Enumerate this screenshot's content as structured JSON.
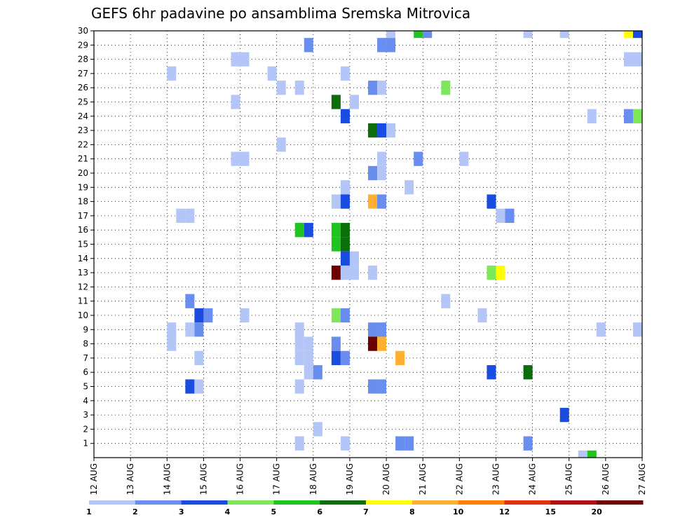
{
  "chart_data": {
    "type": "heatmap",
    "title": "GEFS 6hr padavine po ansamblima Sremska Mitrovica",
    "xlabel": "",
    "ylabel": "",
    "x_ticks": [
      "12 AUG",
      "13 AUG",
      "14 AUG",
      "15 AUG",
      "16 AUG",
      "17 AUG",
      "18 AUG",
      "19 AUG",
      "20 AUG",
      "21 AUG",
      "22 AUG",
      "23 AUG",
      "24 AUG",
      "25 AUG",
      "26 AUG",
      "27 AUG"
    ],
    "y_ticks": [
      1,
      2,
      3,
      4,
      5,
      6,
      7,
      8,
      9,
      10,
      11,
      12,
      13,
      14,
      15,
      16,
      17,
      18,
      19,
      20,
      21,
      22,
      23,
      24,
      25,
      26,
      27,
      28,
      29,
      30
    ],
    "xlim_days": [
      12,
      27
    ],
    "ylim": [
      0,
      30
    ],
    "grid": true,
    "colorbar": {
      "levels": [
        1,
        2,
        3,
        4,
        5,
        6,
        7,
        8,
        10,
        12,
        15,
        20
      ],
      "labels": [
        "1",
        "2",
        "3",
        "4",
        "5",
        "6",
        "7",
        "8",
        "10",
        "12",
        "15",
        "20"
      ],
      "colors": [
        "#b3c6f7",
        "#6a8ef0",
        "#1a4ce0",
        "#7ce85a",
        "#1fc41f",
        "#0a6e0a",
        "#ffff00",
        "#ffb030",
        "#ff8000",
        "#e03010",
        "#b01010",
        "#6e0000"
      ]
    },
    "cells": [
      {
        "day": 14.0,
        "member": 27,
        "c": 0
      },
      {
        "day": 14.0,
        "member": 9,
        "c": 0
      },
      {
        "day": 14.0,
        "member": 8,
        "c": 0
      },
      {
        "day": 14.25,
        "member": 17,
        "c": 0
      },
      {
        "day": 14.5,
        "member": 17,
        "c": 0
      },
      {
        "day": 14.5,
        "member": 11,
        "c": 1
      },
      {
        "day": 14.5,
        "member": 9,
        "c": 0
      },
      {
        "day": 14.5,
        "member": 5,
        "c": 2
      },
      {
        "day": 14.75,
        "member": 10,
        "c": 2
      },
      {
        "day": 14.75,
        "member": 9,
        "c": 1
      },
      {
        "day": 14.75,
        "member": 7,
        "c": 0
      },
      {
        "day": 14.75,
        "member": 5,
        "c": 0
      },
      {
        "day": 15.0,
        "member": 10,
        "c": 1
      },
      {
        "day": 15.75,
        "member": 28,
        "c": 0
      },
      {
        "day": 15.75,
        "member": 25,
        "c": 0
      },
      {
        "day": 15.75,
        "member": 21,
        "c": 0
      },
      {
        "day": 16.0,
        "member": 28,
        "c": 0
      },
      {
        "day": 16.0,
        "member": 21,
        "c": 0
      },
      {
        "day": 16.0,
        "member": 10,
        "c": 0
      },
      {
        "day": 16.75,
        "member": 27,
        "c": 0
      },
      {
        "day": 17.0,
        "member": 26,
        "c": 0
      },
      {
        "day": 17.0,
        "member": 22,
        "c": 0
      },
      {
        "day": 17.5,
        "member": 26,
        "c": 0
      },
      {
        "day": 17.5,
        "member": 16,
        "c": 4
      },
      {
        "day": 17.5,
        "member": 9,
        "c": 0
      },
      {
        "day": 17.5,
        "member": 8,
        "c": 0
      },
      {
        "day": 17.5,
        "member": 7,
        "c": 0
      },
      {
        "day": 17.5,
        "member": 5,
        "c": 0
      },
      {
        "day": 17.5,
        "member": 1,
        "c": 0
      },
      {
        "day": 17.75,
        "member": 29,
        "c": 1
      },
      {
        "day": 17.75,
        "member": 16,
        "c": 2
      },
      {
        "day": 17.75,
        "member": 8,
        "c": 0
      },
      {
        "day": 17.75,
        "member": 7,
        "c": 0
      },
      {
        "day": 17.75,
        "member": 6,
        "c": 0
      },
      {
        "day": 18.0,
        "member": 6,
        "c": 1
      },
      {
        "day": 18.0,
        "member": 2,
        "c": 0
      },
      {
        "day": 18.5,
        "member": 25,
        "c": 5
      },
      {
        "day": 18.5,
        "member": 18,
        "c": 0
      },
      {
        "day": 18.5,
        "member": 16,
        "c": 4
      },
      {
        "day": 18.5,
        "member": 15,
        "c": 4
      },
      {
        "day": 18.5,
        "member": 13,
        "c": 11
      },
      {
        "day": 18.5,
        "member": 10,
        "c": 3
      },
      {
        "day": 18.5,
        "member": 8,
        "c": 1
      },
      {
        "day": 18.5,
        "member": 7,
        "c": 2
      },
      {
        "day": 18.75,
        "member": 27,
        "c": 0
      },
      {
        "day": 18.75,
        "member": 24,
        "c": 2
      },
      {
        "day": 18.75,
        "member": 19,
        "c": 0
      },
      {
        "day": 18.75,
        "member": 18,
        "c": 2
      },
      {
        "day": 18.75,
        "member": 16,
        "c": 5
      },
      {
        "day": 18.75,
        "member": 15,
        "c": 5
      },
      {
        "day": 18.75,
        "member": 14,
        "c": 2
      },
      {
        "day": 18.75,
        "member": 13,
        "c": 0
      },
      {
        "day": 18.75,
        "member": 10,
        "c": 1
      },
      {
        "day": 18.75,
        "member": 7,
        "c": 1
      },
      {
        "day": 18.75,
        "member": 1,
        "c": 0
      },
      {
        "day": 19.0,
        "member": 25,
        "c": 0
      },
      {
        "day": 19.0,
        "member": 14,
        "c": 0
      },
      {
        "day": 19.0,
        "member": 13,
        "c": 0
      },
      {
        "day": 19.5,
        "member": 26,
        "c": 1
      },
      {
        "day": 19.5,
        "member": 23,
        "c": 5
      },
      {
        "day": 19.5,
        "member": 20,
        "c": 1
      },
      {
        "day": 19.5,
        "member": 18,
        "c": 7
      },
      {
        "day": 19.5,
        "member": 13,
        "c": 0
      },
      {
        "day": 19.5,
        "member": 9,
        "c": 1
      },
      {
        "day": 19.5,
        "member": 8,
        "c": 11
      },
      {
        "day": 19.5,
        "member": 5,
        "c": 1
      },
      {
        "day": 19.75,
        "member": 29,
        "c": 1
      },
      {
        "day": 19.75,
        "member": 26,
        "c": 0
      },
      {
        "day": 19.75,
        "member": 23,
        "c": 2
      },
      {
        "day": 19.75,
        "member": 21,
        "c": 0
      },
      {
        "day": 19.75,
        "member": 20,
        "c": 0
      },
      {
        "day": 19.75,
        "member": 18,
        "c": 1
      },
      {
        "day": 19.75,
        "member": 9,
        "c": 1
      },
      {
        "day": 19.75,
        "member": 8,
        "c": 7
      },
      {
        "day": 19.75,
        "member": 5,
        "c": 1
      },
      {
        "day": 20.0,
        "member": 30,
        "c": 0
      },
      {
        "day": 20.0,
        "member": 29,
        "c": 1
      },
      {
        "day": 20.0,
        "member": 23,
        "c": 0
      },
      {
        "day": 20.25,
        "member": 7,
        "c": 7
      },
      {
        "day": 20.25,
        "member": 1,
        "c": 1
      },
      {
        "day": 20.5,
        "member": 19,
        "c": 0
      },
      {
        "day": 20.5,
        "member": 1,
        "c": 1
      },
      {
        "day": 20.75,
        "member": 30,
        "c": 4
      },
      {
        "day": 20.75,
        "member": 21,
        "c": 1
      },
      {
        "day": 21.0,
        "member": 30,
        "c": 1
      },
      {
        "day": 21.5,
        "member": 26,
        "c": 3
      },
      {
        "day": 21.5,
        "member": 11,
        "c": 0
      },
      {
        "day": 22.0,
        "member": 21,
        "c": 0
      },
      {
        "day": 22.5,
        "member": 10,
        "c": 0
      },
      {
        "day": 22.75,
        "member": 18,
        "c": 2
      },
      {
        "day": 22.75,
        "member": 13,
        "c": 3
      },
      {
        "day": 22.75,
        "member": 6,
        "c": 2
      },
      {
        "day": 23.0,
        "member": 17,
        "c": 0
      },
      {
        "day": 23.0,
        "member": 13,
        "c": 6
      },
      {
        "day": 23.25,
        "member": 17,
        "c": 1
      },
      {
        "day": 23.75,
        "member": 30,
        "c": 0
      },
      {
        "day": 23.75,
        "member": 6,
        "c": 5
      },
      {
        "day": 23.75,
        "member": 1,
        "c": 1
      },
      {
        "day": 24.75,
        "member": 30,
        "c": 0
      },
      {
        "day": 24.75,
        "member": 3,
        "c": 2
      },
      {
        "day": 25.25,
        "member": 0,
        "c": 0
      },
      {
        "day": 25.5,
        "member": 0,
        "c": 4
      },
      {
        "day": 25.5,
        "member": 24,
        "c": 0
      },
      {
        "day": 25.75,
        "member": 9,
        "c": 0
      },
      {
        "day": 26.5,
        "member": 30,
        "c": 6
      },
      {
        "day": 26.75,
        "member": 30,
        "c": 2
      },
      {
        "day": 26.5,
        "member": 28,
        "c": 0
      },
      {
        "day": 26.75,
        "member": 28,
        "c": 0
      },
      {
        "day": 26.5,
        "member": 24,
        "c": 1
      },
      {
        "day": 26.75,
        "member": 24,
        "c": 3
      },
      {
        "day": 26.75,
        "member": 9,
        "c": 0
      }
    ]
  }
}
